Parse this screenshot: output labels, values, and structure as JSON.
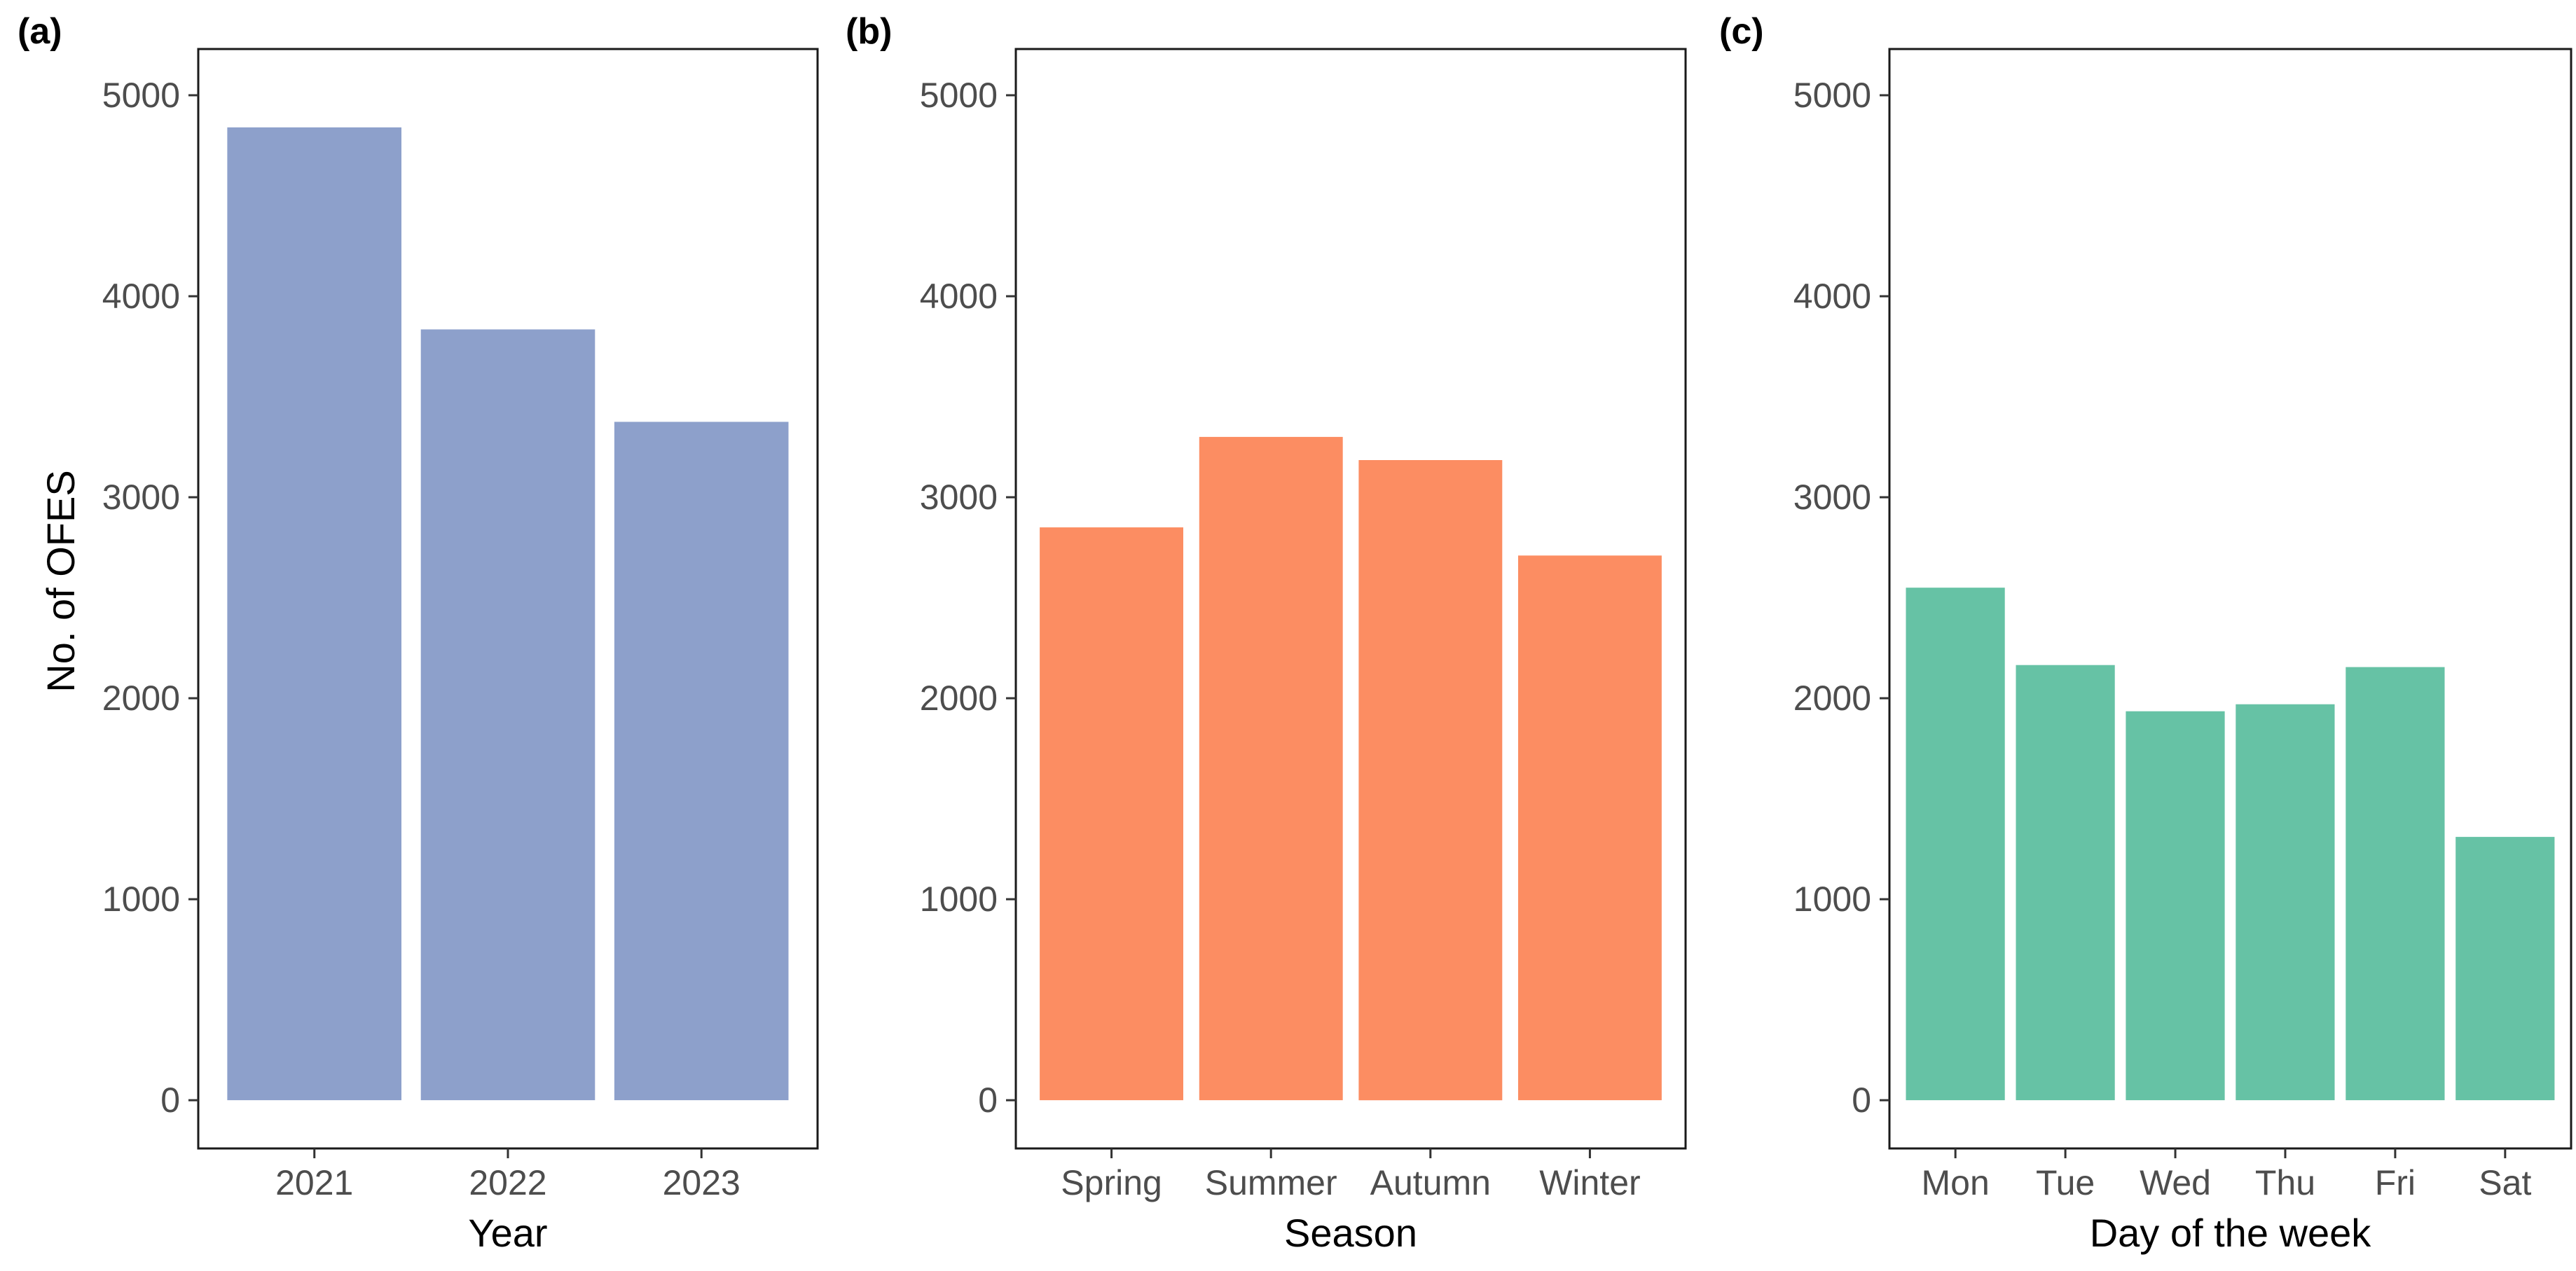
{
  "figure": {
    "y_axis_title": "No. of OFES"
  },
  "chart_data": [
    {
      "type": "bar",
      "panel_label": "(a)",
      "xlabel": "Year",
      "ylabel": "No. of OFES",
      "categories": [
        "2021",
        "2022",
        "2023"
      ],
      "values": [
        4840,
        3835,
        3375
      ],
      "ylim": [
        -240,
        5230
      ],
      "yticks": [
        0,
        1000,
        2000,
        3000,
        4000,
        5000
      ],
      "ytick_labels": [
        "0",
        "1000",
        "2000",
        "3000",
        "4000",
        "5000"
      ],
      "color": "#8DA0CB",
      "grid": false
    },
    {
      "type": "bar",
      "panel_label": "(b)",
      "xlabel": "Season",
      "ylabel": "",
      "categories": [
        "Spring",
        "Summer",
        "Autumn",
        "Winter"
      ],
      "values": [
        2850,
        3300,
        3185,
        2710
      ],
      "ylim": [
        -240,
        5230
      ],
      "yticks": [
        0,
        1000,
        2000,
        3000,
        4000,
        5000
      ],
      "ytick_labels": [
        "0",
        "1000",
        "2000",
        "3000",
        "4000",
        "5000"
      ],
      "color": "#FC8D62",
      "grid": false
    },
    {
      "type": "bar",
      "panel_label": "(c)",
      "xlabel": "Day of the week",
      "ylabel": "",
      "categories": [
        "Mon",
        "Tue",
        "Wed",
        "Thu",
        "Fri",
        "Sat"
      ],
      "values": [
        2550,
        2165,
        1935,
        1970,
        2155,
        1310
      ],
      "ylim": [
        -240,
        5230
      ],
      "yticks": [
        0,
        1000,
        2000,
        3000,
        4000,
        5000
      ],
      "ytick_labels": [
        "0",
        "1000",
        "2000",
        "3000",
        "4000",
        "5000"
      ],
      "color": "#66C2A5",
      "grid": false
    }
  ]
}
